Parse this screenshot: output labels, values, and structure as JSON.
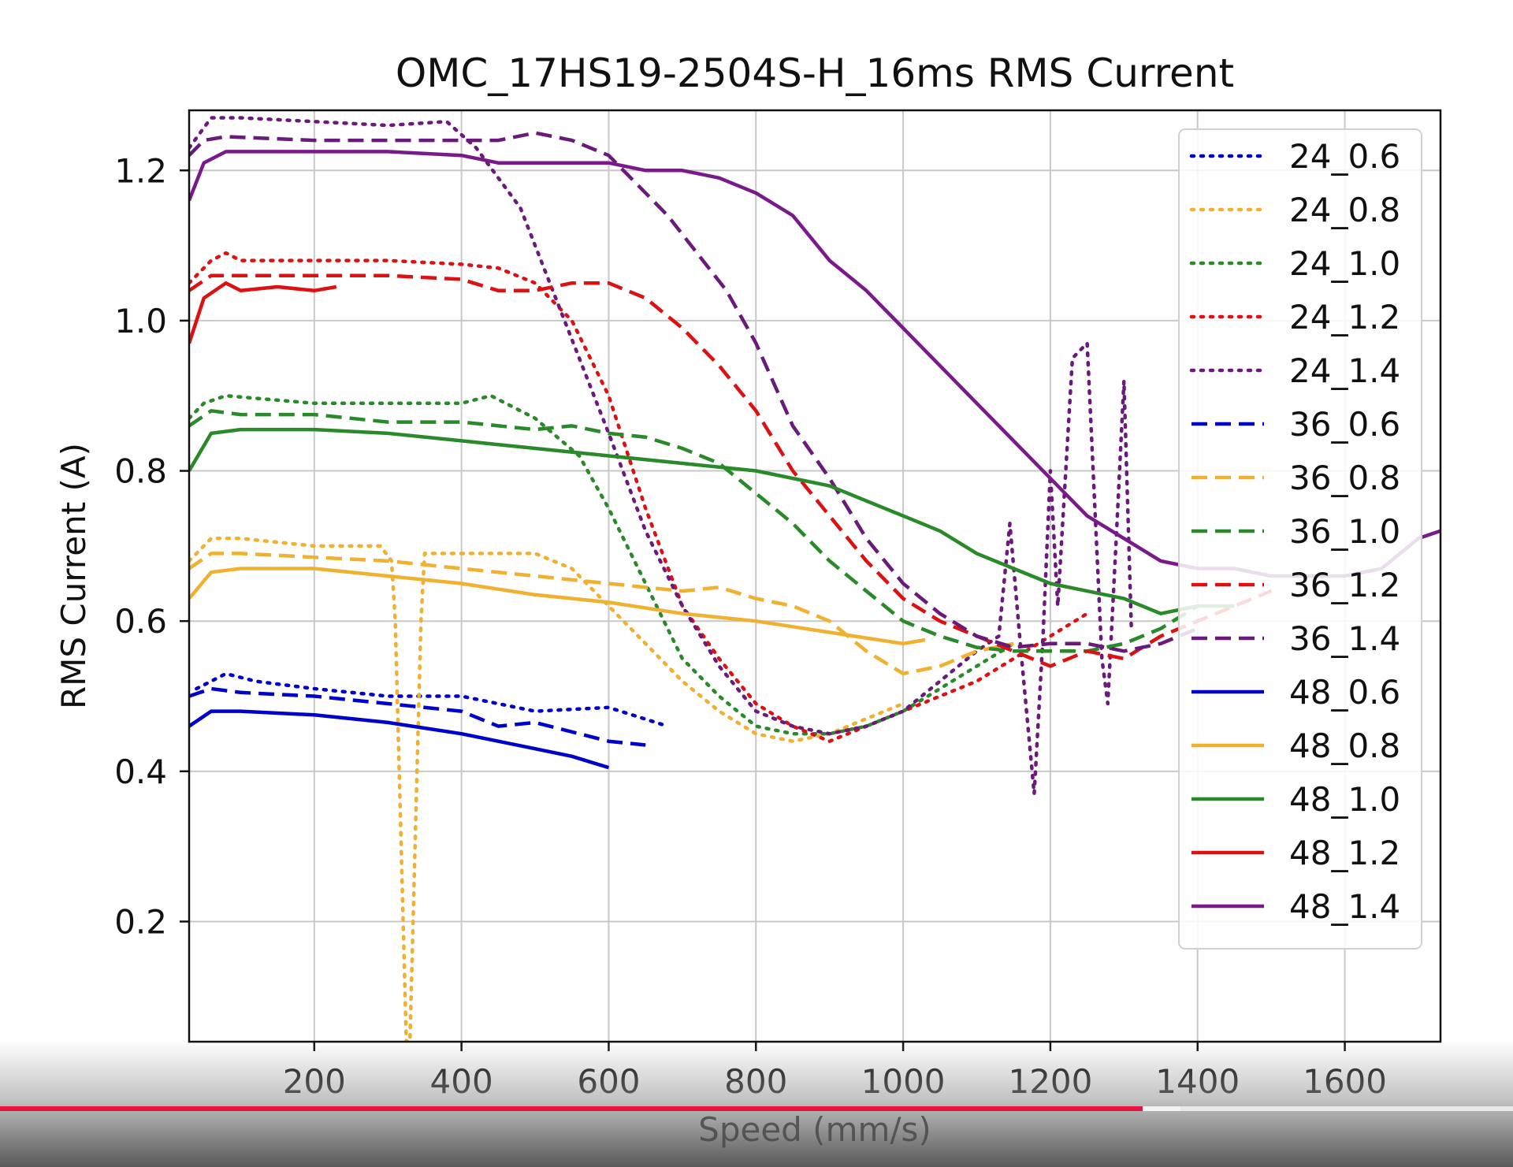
{
  "chart_data": {
    "type": "line",
    "title": "OMC_17HS19-2504S-H_16ms RMS Current",
    "xlabel": "Speed (mm/s)",
    "ylabel": "RMS Current (A)",
    "xlim": [
      30,
      1730
    ],
    "ylim": [
      0.04,
      1.28
    ],
    "xticks": [
      200,
      400,
      600,
      800,
      1000,
      1200,
      1400,
      1600
    ],
    "yticks": [
      0.2,
      0.4,
      0.6,
      0.8,
      1.0,
      1.2
    ],
    "xtick_labels": [
      "200",
      "400",
      "600",
      "800",
      "1000",
      "1200",
      "1400",
      "1600"
    ],
    "ytick_labels": [
      "0.2",
      "0.4",
      "0.6",
      "0.8",
      "1.0",
      "1.2"
    ],
    "grid": true,
    "legend_position": "upper-right",
    "series": [
      {
        "name": "24_0.6",
        "color": "#0000cc",
        "style": "dotted",
        "x": [
          40,
          60,
          80,
          120,
          200,
          300,
          400,
          500,
          600,
          680
        ],
        "y": [
          0.51,
          0.52,
          0.53,
          0.52,
          0.51,
          0.5,
          0.5,
          0.48,
          0.485,
          0.46
        ]
      },
      {
        "name": "24_0.8",
        "color": "#f0b030",
        "style": "dotted",
        "x": [
          30,
          60,
          100,
          200,
          290,
          305,
          310,
          325,
          330,
          345,
          350,
          400,
          500,
          550,
          600,
          650,
          700,
          750,
          800,
          850,
          900,
          950,
          1000
        ],
        "y": [
          0.68,
          0.71,
          0.71,
          0.7,
          0.7,
          0.68,
          0.6,
          0.04,
          0.04,
          0.6,
          0.69,
          0.69,
          0.69,
          0.67,
          0.62,
          0.57,
          0.52,
          0.48,
          0.45,
          0.44,
          0.45,
          0.47,
          0.49
        ]
      },
      {
        "name": "24_1.0",
        "color": "#2a8a2a",
        "style": "dotted",
        "x": [
          30,
          50,
          80,
          200,
          300,
          400,
          440,
          500,
          560,
          600,
          650,
          700,
          750,
          800,
          850,
          900,
          950,
          1000,
          1050,
          1100,
          1150
        ],
        "y": [
          0.87,
          0.89,
          0.9,
          0.89,
          0.89,
          0.89,
          0.9,
          0.87,
          0.82,
          0.75,
          0.65,
          0.55,
          0.5,
          0.46,
          0.45,
          0.45,
          0.46,
          0.48,
          0.51,
          0.54,
          0.57
        ]
      },
      {
        "name": "24_1.2",
        "color": "#dd1111",
        "style": "dotted",
        "x": [
          30,
          60,
          80,
          100,
          200,
          300,
          400,
          450,
          500,
          550,
          600,
          650,
          700,
          750,
          800,
          850,
          900,
          950,
          1000,
          1050,
          1100,
          1150,
          1200,
          1250
        ],
        "y": [
          1.05,
          1.08,
          1.09,
          1.08,
          1.08,
          1.08,
          1.075,
          1.07,
          1.05,
          1.0,
          0.9,
          0.75,
          0.62,
          0.55,
          0.49,
          0.46,
          0.44,
          0.46,
          0.48,
          0.5,
          0.52,
          0.55,
          0.58,
          0.61
        ]
      },
      {
        "name": "24_1.4",
        "color": "#6a1a7a",
        "style": "dotted",
        "x": [
          30,
          60,
          100,
          200,
          300,
          380,
          420,
          480,
          520,
          560,
          600,
          650,
          700,
          750,
          800,
          850,
          900,
          950,
          1000,
          1050,
          1100,
          1130,
          1145,
          1160,
          1178,
          1190,
          1200,
          1210,
          1230,
          1250,
          1260,
          1270,
          1278,
          1290,
          1300,
          1310
        ],
        "y": [
          1.23,
          1.27,
          1.27,
          1.265,
          1.26,
          1.265,
          1.23,
          1.15,
          1.05,
          0.95,
          0.85,
          0.72,
          0.62,
          0.54,
          0.48,
          0.46,
          0.45,
          0.46,
          0.48,
          0.52,
          0.56,
          0.58,
          0.73,
          0.56,
          0.37,
          0.58,
          0.8,
          0.62,
          0.95,
          0.97,
          0.76,
          0.55,
          0.49,
          0.72,
          0.92,
          0.59
        ]
      },
      {
        "name": "36_0.6",
        "color": "#0000cc",
        "style": "dashed",
        "x": [
          30,
          60,
          100,
          200,
          300,
          400,
          450,
          500,
          600,
          650
        ],
        "y": [
          0.5,
          0.51,
          0.505,
          0.5,
          0.49,
          0.48,
          0.46,
          0.465,
          0.44,
          0.435
        ]
      },
      {
        "name": "36_0.8",
        "color": "#f0b030",
        "style": "dashed",
        "x": [
          30,
          60,
          100,
          200,
          300,
          400,
          500,
          600,
          700,
          750,
          800,
          850,
          900,
          950,
          1000,
          1050,
          1100,
          1150
        ],
        "y": [
          0.67,
          0.69,
          0.69,
          0.685,
          0.68,
          0.67,
          0.66,
          0.65,
          0.64,
          0.645,
          0.63,
          0.62,
          0.6,
          0.56,
          0.53,
          0.54,
          0.56,
          0.57
        ]
      },
      {
        "name": "36_1.0",
        "color": "#2a8a2a",
        "style": "dashed",
        "x": [
          30,
          60,
          100,
          200,
          300,
          400,
          500,
          550,
          600,
          650,
          700,
          750,
          800,
          850,
          900,
          950,
          1000,
          1050,
          1100,
          1150,
          1200,
          1250,
          1300,
          1350,
          1400
        ],
        "y": [
          0.86,
          0.88,
          0.875,
          0.875,
          0.865,
          0.865,
          0.855,
          0.86,
          0.85,
          0.845,
          0.83,
          0.81,
          0.77,
          0.73,
          0.68,
          0.64,
          0.6,
          0.58,
          0.565,
          0.56,
          0.56,
          0.56,
          0.57,
          0.59,
          0.62
        ]
      },
      {
        "name": "36_1.2",
        "color": "#dd1111",
        "style": "dashed",
        "x": [
          30,
          60,
          100,
          200,
          300,
          400,
          450,
          500,
          550,
          600,
          650,
          700,
          750,
          800,
          850,
          900,
          950,
          1000,
          1050,
          1100,
          1150,
          1200,
          1250,
          1300,
          1350,
          1400,
          1450,
          1500
        ],
        "y": [
          1.04,
          1.06,
          1.06,
          1.06,
          1.06,
          1.055,
          1.04,
          1.04,
          1.05,
          1.05,
          1.03,
          0.99,
          0.94,
          0.88,
          0.8,
          0.74,
          0.68,
          0.63,
          0.6,
          0.58,
          0.56,
          0.54,
          0.56,
          0.55,
          0.58,
          0.6,
          0.62,
          0.64
        ]
      },
      {
        "name": "36_1.4",
        "color": "#6a1a7a",
        "style": "dashed",
        "x": [
          30,
          50,
          80,
          200,
          300,
          400,
          450,
          500,
          550,
          600,
          640,
          680,
          720,
          760,
          800,
          850,
          900,
          950,
          1000,
          1050,
          1100,
          1150,
          1200,
          1250,
          1300,
          1350,
          1400
        ],
        "y": [
          1.22,
          1.24,
          1.245,
          1.24,
          1.24,
          1.24,
          1.24,
          1.25,
          1.24,
          1.22,
          1.18,
          1.14,
          1.09,
          1.04,
          0.97,
          0.86,
          0.79,
          0.71,
          0.65,
          0.61,
          0.58,
          0.565,
          0.57,
          0.57,
          0.56,
          0.57,
          0.59
        ]
      },
      {
        "name": "48_0.6",
        "color": "#0000cc",
        "style": "solid",
        "x": [
          30,
          60,
          100,
          200,
          300,
          400,
          450,
          500,
          550,
          600
        ],
        "y": [
          0.46,
          0.48,
          0.48,
          0.475,
          0.465,
          0.45,
          0.44,
          0.43,
          0.42,
          0.405
        ]
      },
      {
        "name": "48_0.8",
        "color": "#f0b030",
        "style": "solid",
        "x": [
          30,
          60,
          100,
          200,
          300,
          400,
          500,
          600,
          700,
          800,
          900,
          1000,
          1030
        ],
        "y": [
          0.63,
          0.665,
          0.67,
          0.67,
          0.66,
          0.65,
          0.635,
          0.625,
          0.61,
          0.6,
          0.585,
          0.57,
          0.575
        ]
      },
      {
        "name": "48_1.0",
        "color": "#2a8a2a",
        "style": "solid",
        "x": [
          30,
          60,
          100,
          200,
          300,
          400,
          500,
          600,
          700,
          800,
          900,
          1000,
          1050,
          1100,
          1150,
          1200,
          1250,
          1300,
          1350,
          1400,
          1450
        ],
        "y": [
          0.8,
          0.85,
          0.855,
          0.855,
          0.85,
          0.84,
          0.83,
          0.82,
          0.81,
          0.8,
          0.78,
          0.74,
          0.72,
          0.69,
          0.67,
          0.65,
          0.64,
          0.63,
          0.61,
          0.62,
          0.62
        ]
      },
      {
        "name": "48_1.2",
        "color": "#dd1111",
        "style": "solid",
        "x": [
          30,
          50,
          80,
          100,
          150,
          200,
          230
        ],
        "y": [
          0.97,
          1.03,
          1.05,
          1.04,
          1.045,
          1.04,
          1.045
        ]
      },
      {
        "name": "48_1.4",
        "color": "#7a1a8a",
        "style": "solid",
        "x": [
          30,
          50,
          80,
          120,
          200,
          250,
          300,
          400,
          450,
          500,
          550,
          600,
          650,
          700,
          750,
          800,
          850,
          900,
          950,
          1000,
          1050,
          1100,
          1150,
          1200,
          1250,
          1300,
          1350,
          1400,
          1450,
          1500,
          1550,
          1600,
          1650,
          1700,
          1730
        ],
        "y": [
          1.16,
          1.21,
          1.225,
          1.225,
          1.225,
          1.225,
          1.225,
          1.22,
          1.21,
          1.21,
          1.21,
          1.21,
          1.2,
          1.2,
          1.19,
          1.17,
          1.14,
          1.08,
          1.04,
          0.99,
          0.94,
          0.89,
          0.84,
          0.79,
          0.74,
          0.71,
          0.68,
          0.67,
          0.67,
          0.66,
          0.66,
          0.66,
          0.67,
          0.71,
          0.72
        ]
      }
    ]
  },
  "player": {
    "progress_played": 0.755,
    "progress_buffered": 0.78
  }
}
